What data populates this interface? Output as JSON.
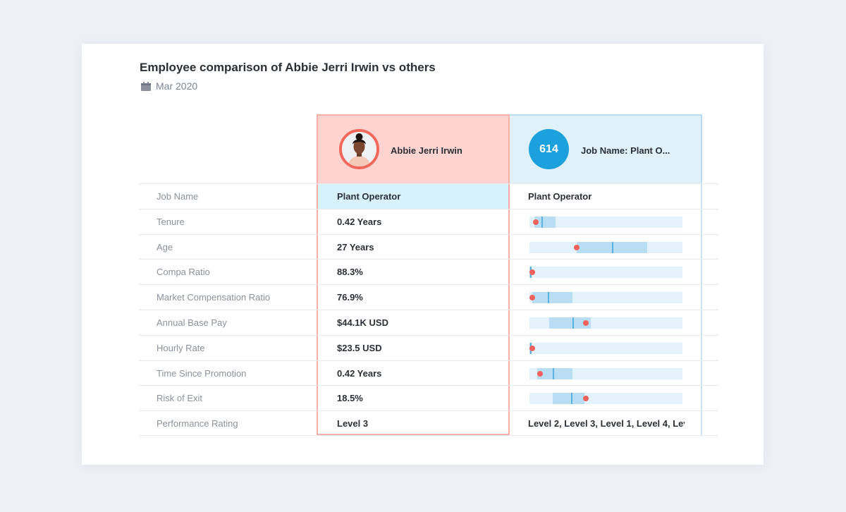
{
  "header": {
    "title": "Employee comparison of Abbie Jerri Irwin vs others",
    "date": "Mar 2020"
  },
  "employee": {
    "name": "Abbie Jerri Irwin"
  },
  "job": {
    "count": "614",
    "name": "Job Name: Plant O..."
  },
  "rows": [
    {
      "label": "Job Name",
      "value": "Plant Operator",
      "compare_text": "Plant Operator"
    },
    {
      "label": "Tenure",
      "value": "0.42 Years",
      "compare": {
        "range_start": 0.03,
        "range_end": 0.17,
        "median": 0.08,
        "self": 0.04
      }
    },
    {
      "label": "Age",
      "value": "27 Years",
      "compare": {
        "range_start": 0.31,
        "range_end": 0.77,
        "median": 0.54,
        "self": 0.31
      }
    },
    {
      "label": "Compa Ratio",
      "value": "88.3%",
      "compare": {
        "range_start": 0.0,
        "range_end": 0.005,
        "median": 0.003,
        "self": 0.005
      }
    },
    {
      "label": "Market Compensation Ratio",
      "value": "76.9%",
      "compare": {
        "range_start": 0.02,
        "range_end": 0.28,
        "median": 0.12,
        "self": 0.02
      }
    },
    {
      "label": "Annual Base Pay",
      "value": "$44.1K USD",
      "compare": {
        "range_start": 0.13,
        "range_end": 0.4,
        "median": 0.28,
        "self": 0.37
      }
    },
    {
      "label": "Hourly Rate",
      "value": "$23.5 USD",
      "compare": {
        "range_start": 0.0,
        "range_end": 0.005,
        "median": 0.004,
        "self": 0.01
      }
    },
    {
      "label": "Time Since Promotion",
      "value": "0.42 Years",
      "compare": {
        "range_start": 0.05,
        "range_end": 0.28,
        "median": 0.15,
        "self": 0.07
      }
    },
    {
      "label": "Risk of Exit",
      "value": "18.5%",
      "compare": {
        "range_start": 0.15,
        "range_end": 0.36,
        "median": 0.27,
        "self": 0.37
      }
    },
    {
      "label": "Performance Rating",
      "value": "Level 3",
      "compare_text": "Level 2, Level 3, Level 1, Level 4, Lev..."
    }
  ],
  "colors": {
    "employee_header": "#ffd3cf",
    "employee_border": "#f6b0a8",
    "job_header": "#e0f1fa",
    "accent_blue": "#1da1dc",
    "marker_red": "#f0625a"
  }
}
